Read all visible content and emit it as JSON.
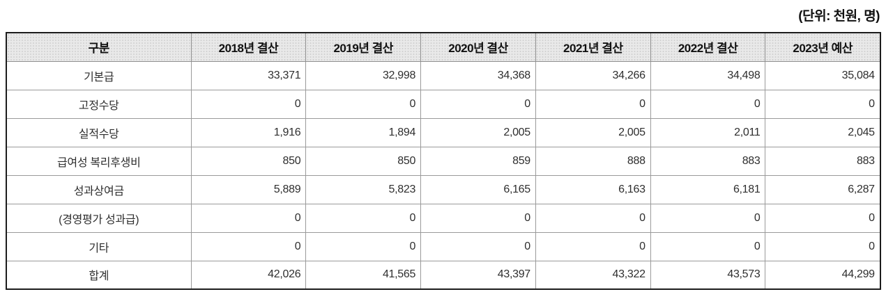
{
  "unit_label": "(단위: 천원, 명)",
  "table": {
    "columns": [
      "구분",
      "2018년 결산",
      "2019년 결산",
      "2020년 결산",
      "2021년 결산",
      "2022년 결산",
      "2023년 예산"
    ],
    "rows": [
      {
        "label": "기본급",
        "values": [
          "33,371",
          "32,998",
          "34,368",
          "34,266",
          "34,498",
          "35,084"
        ]
      },
      {
        "label": "고정수당",
        "values": [
          "0",
          "0",
          "0",
          "0",
          "0",
          "0"
        ]
      },
      {
        "label": "실적수당",
        "values": [
          "1,916",
          "1,894",
          "2,005",
          "2,005",
          "2,011",
          "2,045"
        ]
      },
      {
        "label": "급여성 복리후생비",
        "values": [
          "850",
          "850",
          "859",
          "888",
          "883",
          "883"
        ]
      },
      {
        "label": "성과상여금",
        "values": [
          "5,889",
          "5,823",
          "6,165",
          "6,163",
          "6,181",
          "6,287"
        ]
      },
      {
        "label": "(경영평가 성과급)",
        "values": [
          "0",
          "0",
          "0",
          "0",
          "0",
          "0"
        ]
      },
      {
        "label": "기타",
        "values": [
          "0",
          "0",
          "0",
          "0",
          "0",
          "0"
        ]
      },
      {
        "label": "합계",
        "values": [
          "42,026",
          "41,565",
          "43,397",
          "43,322",
          "43,573",
          "44,299"
        ]
      }
    ]
  },
  "colors": {
    "header_background": "#e9e9e9",
    "header_dot": "#cfcfcf",
    "outer_border": "#1c1c1c",
    "grid_line": "#9a9a9a",
    "text": "#2e2e2e"
  }
}
